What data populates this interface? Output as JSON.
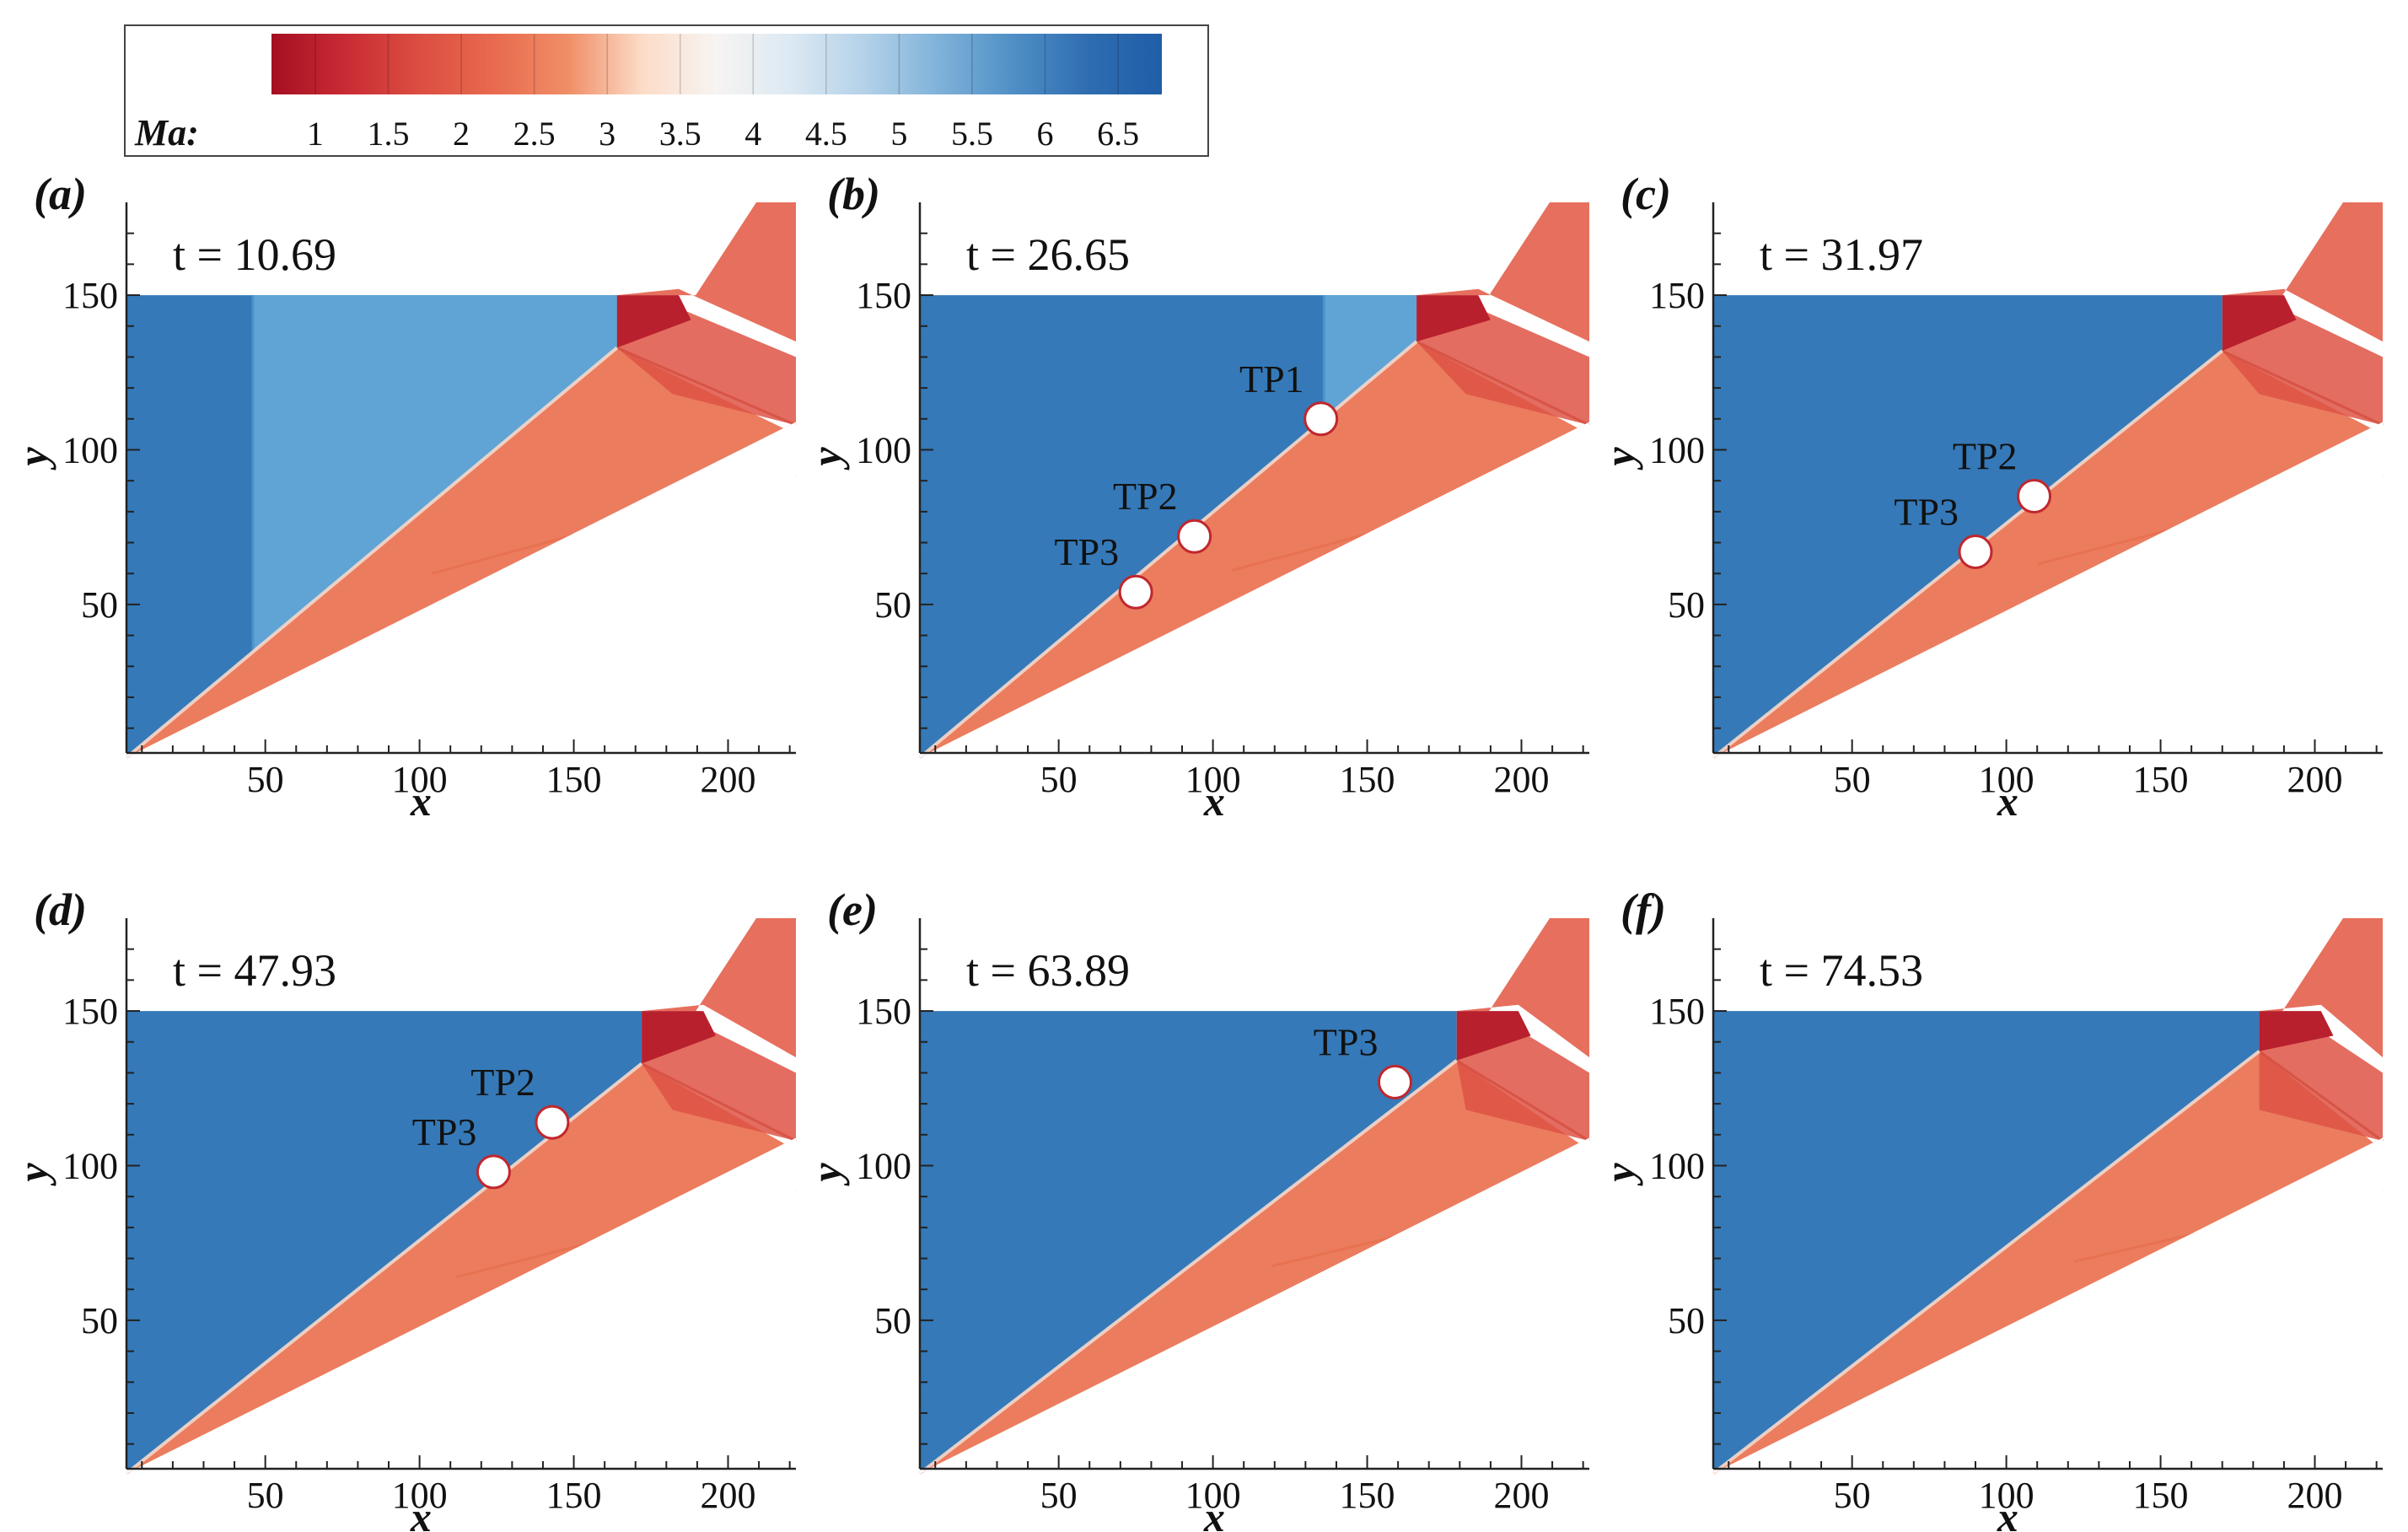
{
  "chart_data": {
    "type": "heatmap",
    "quantity": "Ma",
    "colorbar": {
      "label": "Ma:",
      "range": [
        0.7,
        6.8
      ],
      "ticks": [
        "1",
        "1.5",
        "2",
        "2.5",
        "3",
        "3.5",
        "4",
        "4.5",
        "5",
        "5.5",
        "6",
        "6.5"
      ],
      "tick_values": [
        1,
        1.5,
        2,
        2.5,
        3,
        3.5,
        4,
        4.5,
        5,
        5.5,
        6,
        6.5
      ],
      "colors": [
        "#a50f22",
        "#c92b34",
        "#dc4e41",
        "#e86a4f",
        "#f08e66",
        "#fcdcc8",
        "#f7f4f2",
        "#dce9f3",
        "#b3d1e8",
        "#7fb2d9",
        "#4f8fc6",
        "#2f6db1",
        "#1f5ea8"
      ]
    },
    "xlabel": "x",
    "ylabel": "y",
    "xticks": [
      "50",
      "100",
      "150",
      "200"
    ],
    "xtick_values": [
      50,
      100,
      150,
      200
    ],
    "yticks": [
      "50",
      "100",
      "150"
    ],
    "ytick_values": [
      50,
      100,
      150
    ],
    "xlim": [
      5,
      222
    ],
    "ylim": [
      2,
      180
    ],
    "top_wall_y": 150,
    "inflow_mach": 6.5,
    "colors": {
      "freestream": "#3579b8",
      "incident_wave": "#5fa4d5",
      "wedge_flow": "#ec7c5e",
      "reflected_flow": "#de5444",
      "mach_stem": "#b8202e",
      "upper_flow": "#e45f4b"
    },
    "panels": [
      {
        "letter": "(a)",
        "time_label": "t = 10.69",
        "t": 10.69,
        "front_x": 46,
        "corner": [
          164,
          133
        ],
        "tp": []
      },
      {
        "letter": "(b)",
        "time_label": "t = 26.65",
        "t": 26.65,
        "front_x": 136,
        "corner": [
          166,
          135
        ],
        "tp": [
          {
            "label": "TP1",
            "x": 135,
            "y": 110
          },
          {
            "label": "TP2",
            "x": 94,
            "y": 72
          },
          {
            "label": "TP3",
            "x": 75,
            "y": 54
          }
        ]
      },
      {
        "letter": "(c)",
        "time_label": "t = 31.97",
        "t": 31.97,
        "front_x": null,
        "corner": [
          170,
          132
        ],
        "tp": [
          {
            "label": "TP2",
            "x": 109,
            "y": 85
          },
          {
            "label": "TP3",
            "x": 90,
            "y": 67
          }
        ]
      },
      {
        "letter": "(d)",
        "time_label": "t = 47.93",
        "t": 47.93,
        "front_x": null,
        "corner": [
          172,
          133
        ],
        "tp": [
          {
            "label": "TP2",
            "x": 143,
            "y": 114
          },
          {
            "label": "TP3",
            "x": 124,
            "y": 98
          }
        ]
      },
      {
        "letter": "(e)",
        "time_label": "t = 63.89",
        "t": 63.89,
        "front_x": null,
        "corner": [
          179,
          134
        ],
        "tp": [
          {
            "label": "TP3",
            "x": 159,
            "y": 127
          }
        ]
      },
      {
        "letter": "(f)",
        "time_label": "t = 74.53",
        "t": 74.53,
        "front_x": null,
        "corner": [
          182,
          137
        ],
        "tp": []
      }
    ]
  }
}
